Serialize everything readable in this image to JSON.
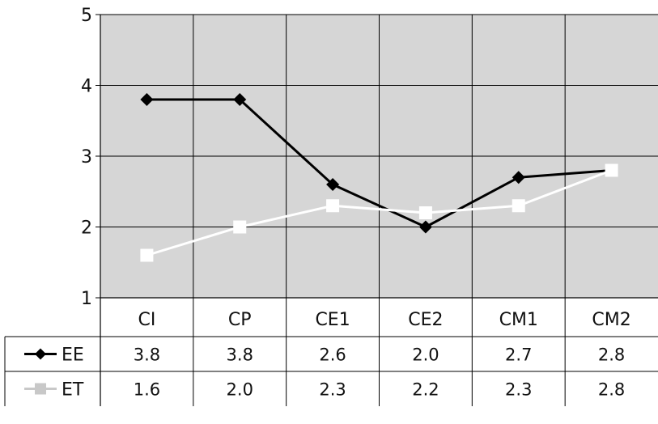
{
  "chart_data": {
    "type": "line",
    "categories": [
      "CI",
      "CP",
      "CE1",
      "CE2",
      "CM1",
      "CM2"
    ],
    "ylim": [
      1,
      5
    ],
    "yticks": [
      "1",
      "2",
      "3",
      "4",
      "5"
    ],
    "grid": true,
    "series": [
      {
        "name": "EE",
        "values": [
          3.8,
          3.8,
          2.6,
          2.0,
          2.7,
          2.8
        ],
        "display": [
          "3.8",
          "3.8",
          "2.6",
          "2.0",
          "2.7",
          "2.8"
        ],
        "color": "#000000",
        "marker": "diamond"
      },
      {
        "name": "ET",
        "values": [
          1.6,
          2.0,
          2.3,
          2.2,
          2.3,
          2.8
        ],
        "display": [
          "1.6",
          "2.0",
          "2.3",
          "2.2",
          "2.3",
          "2.8"
        ],
        "color": "#ffffff",
        "marker": "square"
      }
    ],
    "plot_background": "#d6d6d6",
    "gridline_color": "#000000"
  }
}
